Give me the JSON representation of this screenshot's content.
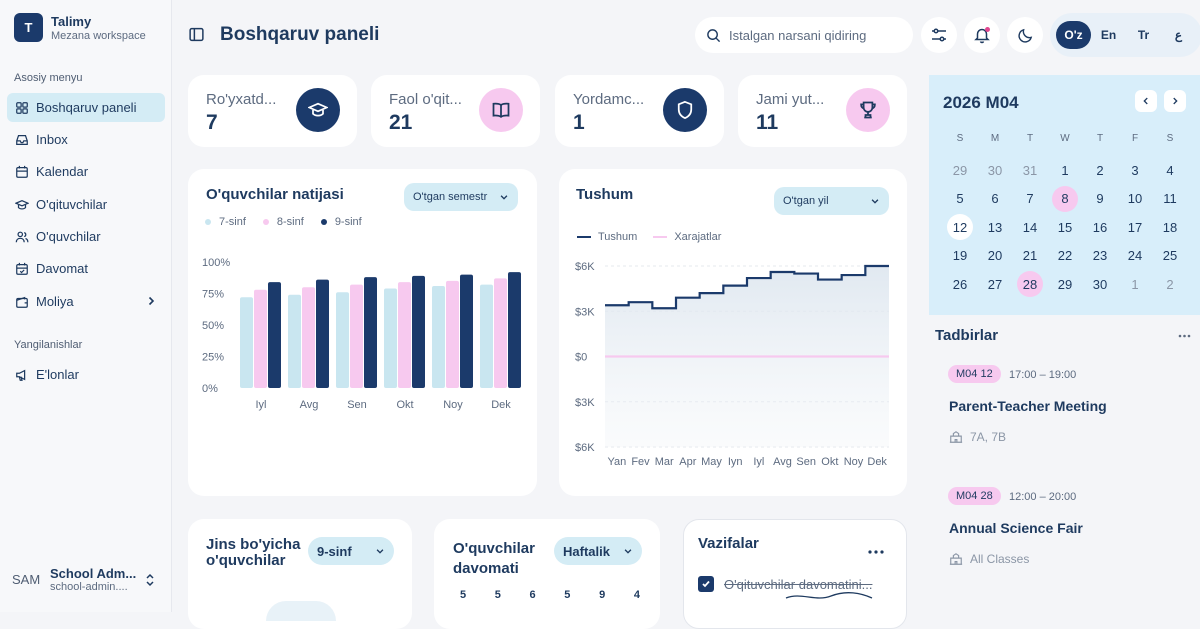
{
  "brand": {
    "initial": "T",
    "name": "Talimy",
    "workspace": "Mezana workspace"
  },
  "sidebar": {
    "main_title": "Asosiy menyu",
    "items": [
      {
        "label": "Boshqaruv paneli",
        "icon": "grid-icon",
        "active": true
      },
      {
        "label": "Inbox",
        "icon": "inbox-icon"
      },
      {
        "label": "Kalendar",
        "icon": "calendar-icon"
      },
      {
        "label": "O'qituvchilar",
        "icon": "graduation-cap-icon"
      },
      {
        "label": "O'quvchilar",
        "icon": "users-icon"
      },
      {
        "label": "Davomat",
        "icon": "calendar-check-icon"
      },
      {
        "label": "Moliya",
        "icon": "wallet-icon"
      }
    ],
    "updates_title": "Yangilanishlar",
    "updates": [
      {
        "label": "E'lonlar",
        "icon": "megaphone-icon"
      }
    ]
  },
  "user": {
    "avatar": "SAM",
    "name": "School Adm...",
    "email": "school-admin...."
  },
  "header": {
    "title": "Boshqaruv paneli",
    "search_placeholder": "Istalgan narsani qidiring",
    "languages": [
      "O'z",
      "En",
      "Tr",
      "ع"
    ],
    "active_language": "O'z"
  },
  "stats": [
    {
      "label": "Ro'yxatd...",
      "value": "7",
      "icon": "graduation-cap-icon",
      "icon_bg": "#1b3a6b"
    },
    {
      "label": "Faol o'qit...",
      "value": "21",
      "icon": "book-icon",
      "icon_bg": "#f7c9ef"
    },
    {
      "label": "Yordamc...",
      "value": "1",
      "icon": "shield-icon",
      "icon_bg": "#1b3a6b"
    },
    {
      "label": "Jami yut...",
      "value": "11",
      "icon": "trophy-icon",
      "icon_bg": "#f7c9ef"
    }
  ],
  "results": {
    "title": "O'quvchilar natijasi",
    "filter": "O'tgan semestr",
    "legend": [
      "7-sinf",
      "8-sinf",
      "9-sinf"
    ]
  },
  "income": {
    "title": "Tushum",
    "filter": "O'tgan yil",
    "legend": [
      "Tushum",
      "Xarajatlar"
    ]
  },
  "gender": {
    "title_line1": "Jins bo'yicha",
    "title_line2": "o'quvchilar",
    "filter": "9-sinf"
  },
  "attendance": {
    "title_line1": "O'quvchilar",
    "title_line2": "davomati",
    "filter": "Haftalik",
    "values": [
      "5",
      "5",
      "6",
      "5",
      "9",
      "4"
    ]
  },
  "tasks": {
    "title": "Vazifalar",
    "first_task": "O'qituvchilar davomatini..."
  },
  "calendar": {
    "title": "2026 M04",
    "weekdays": [
      "S",
      "M",
      "T",
      "W",
      "T",
      "F",
      "S"
    ],
    "days": [
      [
        "29",
        "30",
        "31",
        "1",
        "2",
        "3",
        "4"
      ],
      [
        "5",
        "6",
        "7",
        "8",
        "9",
        "10",
        "11"
      ],
      [
        "12",
        "13",
        "14",
        "15",
        "16",
        "17",
        "18"
      ],
      [
        "19",
        "20",
        "21",
        "22",
        "23",
        "24",
        "25"
      ],
      [
        "26",
        "27",
        "28",
        "29",
        "30",
        "1",
        "2"
      ]
    ],
    "selected_day": "8",
    "today": "12"
  },
  "events": {
    "title": "Tadbirlar",
    "items": [
      {
        "tag": "M04 12",
        "time": "17:00 – 19:00",
        "name": "Parent-Teacher Meeting",
        "classes": "7A, 7B"
      },
      {
        "tag": "M04 28",
        "time": "12:00 – 20:00",
        "name": "Annual Science Fair",
        "classes": "All Classes"
      }
    ]
  },
  "chart_data": [
    {
      "type": "bar",
      "title": "O'quvchilar natijasi",
      "categories": [
        "Iyl",
        "Avg",
        "Sen",
        "Okt",
        "Noy",
        "Dek"
      ],
      "yticks": [
        "100%",
        "75%",
        "50%",
        "25%",
        "0%"
      ],
      "ylim": [
        0,
        100
      ],
      "series": [
        {
          "name": "7-sinf",
          "color": "#c9e6f0",
          "values": [
            72,
            74,
            76,
            79,
            81,
            82
          ]
        },
        {
          "name": "8-sinf",
          "color": "#f7c9ef",
          "values": [
            78,
            80,
            82,
            84,
            85,
            87
          ]
        },
        {
          "name": "9-sinf",
          "color": "#1b3a6b",
          "values": [
            84,
            86,
            88,
            89,
            90,
            92
          ]
        }
      ]
    },
    {
      "type": "line",
      "title": "Tushum",
      "categories": [
        "Yan",
        "Fev",
        "Mar",
        "Apr",
        "May",
        "Iyn",
        "Iyl",
        "Avg",
        "Sen",
        "Okt",
        "Noy",
        "Dek"
      ],
      "yticks": [
        "$6K",
        "$3K",
        "$0",
        "$3K",
        "$6K"
      ],
      "ylim": [
        -6000,
        6000
      ],
      "series": [
        {
          "name": "Tushum",
          "color": "#1b3a6b",
          "values": [
            3400,
            3600,
            3200,
            3900,
            4200,
            4700,
            5200,
            5600,
            5500,
            5100,
            5400,
            6000
          ]
        },
        {
          "name": "Xarajatlar",
          "color": "#f7c9ef",
          "values": [
            0,
            0,
            0,
            0,
            0,
            0,
            0,
            0,
            0,
            0,
            0,
            0
          ]
        }
      ]
    }
  ]
}
